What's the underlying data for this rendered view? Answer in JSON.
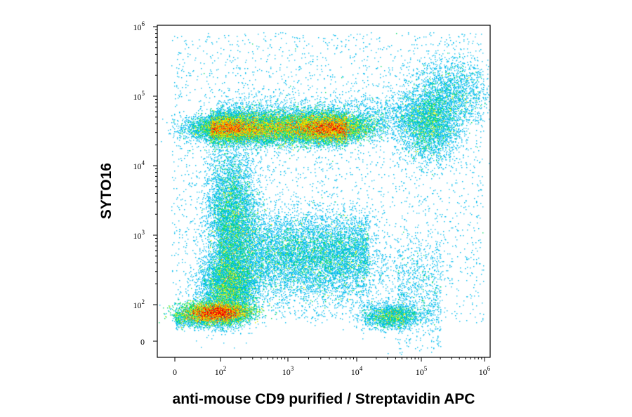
{
  "chart_data": {
    "type": "scatter",
    "subtype": "flow-cytometry-density-plot",
    "xlabel": "anti-mouse CD9 purified / Streptavidin APC",
    "ylabel": "SYTO16",
    "x_scale": "biexponential",
    "y_scale": "biexponential",
    "xlim": [
      0,
      1000000
    ],
    "ylim": [
      0,
      1000000
    ],
    "x_ticks": [
      {
        "base": "0",
        "exp": "",
        "value": 0
      },
      {
        "base": "10",
        "exp": "2",
        "value": 100
      },
      {
        "base": "10",
        "exp": "3",
        "value": 1000
      },
      {
        "base": "10",
        "exp": "4",
        "value": 10000
      },
      {
        "base": "10",
        "exp": "5",
        "value": 100000
      },
      {
        "base": "10",
        "exp": "6",
        "value": 1000000
      }
    ],
    "y_ticks": [
      {
        "base": "0",
        "exp": "",
        "value": 0
      },
      {
        "base": "10",
        "exp": "2",
        "value": 100
      },
      {
        "base": "10",
        "exp": "3",
        "value": 1000
      },
      {
        "base": "10",
        "exp": "4",
        "value": 10000
      },
      {
        "base": "10",
        "exp": "5",
        "value": 100000
      },
      {
        "base": "10",
        "exp": "6",
        "value": 1000000
      }
    ],
    "grid": false,
    "legend": "none",
    "color_scale": [
      "#0000dd",
      "#00bbee",
      "#00dd66",
      "#ddee00",
      "#ff8800",
      "#ee0000"
    ],
    "populations": [
      {
        "x": [
          70,
          4000
        ],
        "y": [
          35000
        ],
        "density": "high"
      },
      {
        "x": [
          60,
          200
        ],
        "y": [
          1500,
          8000
        ],
        "density": "medium"
      },
      {
        "x": [
          80,
          15000
        ],
        "y": [
          180,
          600
        ],
        "density": "medium"
      },
      {
        "x": [
          60
        ],
        "y": [
          40
        ],
        "density": "highest"
      },
      {
        "x": [
          20000
        ],
        "y": [
          50
        ],
        "density": "medium"
      },
      {
        "x": [
          80000,
          300000
        ],
        "y": [
          25000,
          120000
        ],
        "density": "medium"
      }
    ]
  }
}
